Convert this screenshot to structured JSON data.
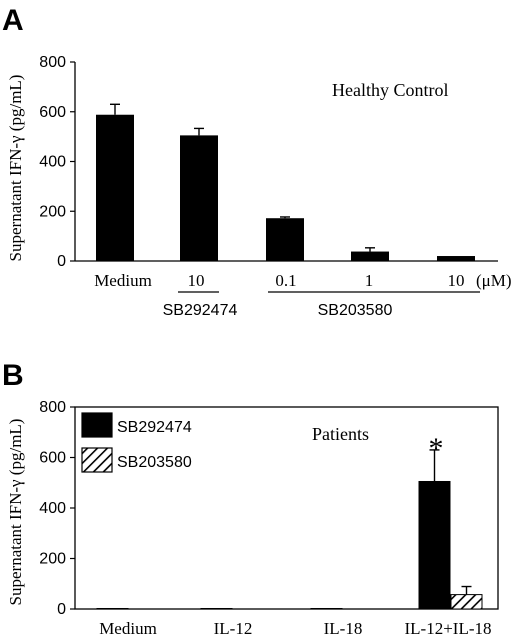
{
  "panel_a": {
    "letter": "A",
    "annotation": "Healthy Control",
    "unit_label": "(μM)",
    "groups": [
      {
        "label": "SB292474",
        "start": 1,
        "end": 1
      },
      {
        "label": "SB203580",
        "start": 2,
        "end": 4
      }
    ]
  },
  "panel_b": {
    "letter": "B",
    "annotation": "Patients",
    "significance": "*"
  },
  "colors": {
    "solid": "#000000",
    "hatch": "#000000",
    "background": "#ffffff"
  },
  "chart_data": [
    {
      "type": "bar",
      "title": "",
      "xlabel": "",
      "ylabel": "Supernatant IFN-γ (pg/mL)",
      "ylim": [
        0,
        800
      ],
      "yticks": [
        0,
        200,
        400,
        600,
        800
      ],
      "categories": [
        "Medium",
        "10",
        "0.1",
        "1",
        "10"
      ],
      "values": [
        588,
        505,
        172,
        38,
        20
      ],
      "errors": [
        42,
        28,
        5,
        15,
        0
      ],
      "grid": false
    },
    {
      "type": "bar",
      "title": "",
      "xlabel": "",
      "ylabel": "Supernatant IFN-γ (pg/mL)",
      "ylim": [
        0,
        800
      ],
      "yticks": [
        0,
        200,
        400,
        600,
        800
      ],
      "categories": [
        "Medium",
        "IL-12",
        "IL-18",
        "IL-12+IL-18"
      ],
      "legend_position": "top-left",
      "series": [
        {
          "name": "SB292474",
          "pattern": "solid",
          "values": [
            2,
            2,
            2,
            505
          ],
          "errors": [
            0,
            0,
            0,
            125
          ]
        },
        {
          "name": "SB203580",
          "pattern": "hatch",
          "values": [
            0,
            0,
            0,
            57
          ],
          "errors": [
            0,
            0,
            0,
            32
          ]
        }
      ],
      "grid": false
    }
  ]
}
